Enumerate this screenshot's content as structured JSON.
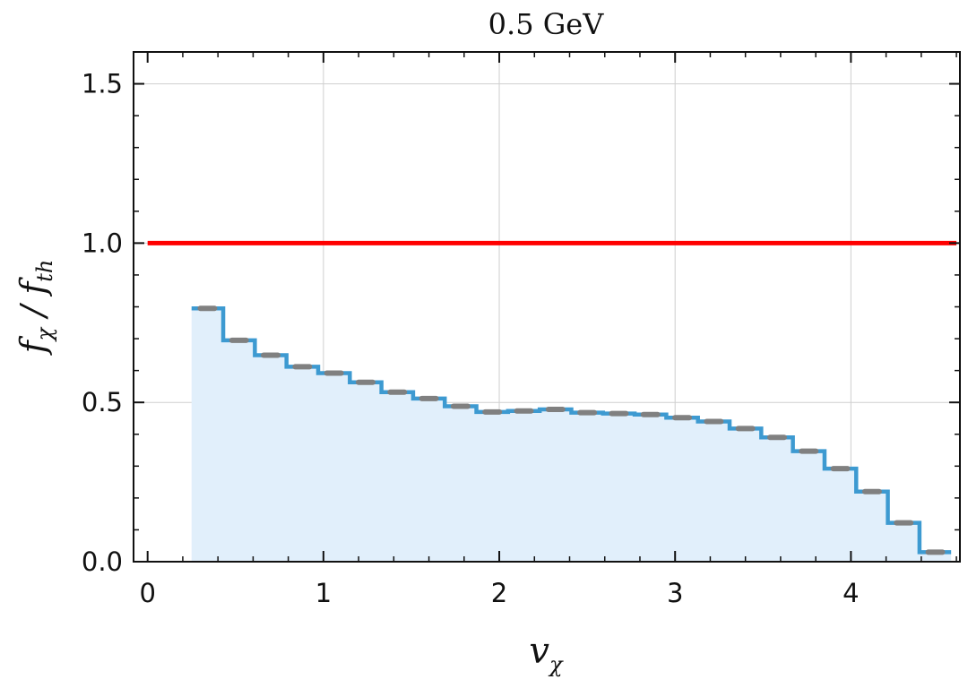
{
  "chart_data": {
    "type": "histogram",
    "title": "0.5 GeV",
    "xlabel": {
      "main": "v",
      "sub": "χ"
    },
    "ylabel": {
      "f1": "f",
      "s1": "χ",
      "slash": " / ",
      "f2": "f",
      "s2": "th"
    },
    "xlim": [
      -0.08,
      4.62
    ],
    "ylim": [
      0,
      1.6
    ],
    "xticks": [
      0,
      1,
      2,
      3,
      4
    ],
    "xtick_labels": [
      "0",
      "1",
      "2",
      "3",
      "4"
    ],
    "yticks": [
      0.0,
      0.5,
      1.0,
      1.5
    ],
    "ytick_labels": [
      "0.0",
      "0.5",
      "1.0",
      "1.5"
    ],
    "grid": true,
    "reference_line": {
      "y": 1.0,
      "x_start": 0.0,
      "x_end": 4.6,
      "color": "#ff0000"
    },
    "bin_edges": [
      0.25,
      0.43,
      0.61,
      0.79,
      0.97,
      1.15,
      1.33,
      1.51,
      1.69,
      1.87,
      2.05,
      2.23,
      2.41,
      2.59,
      2.77,
      2.95,
      3.13,
      3.31,
      3.49,
      3.67,
      3.85,
      4.03,
      4.21,
      4.39,
      4.57
    ],
    "values": [
      0.795,
      0.695,
      0.648,
      0.612,
      0.592,
      0.563,
      0.532,
      0.512,
      0.488,
      0.47,
      0.473,
      0.478,
      0.468,
      0.465,
      0.462,
      0.452,
      0.44,
      0.418,
      0.39,
      0.347,
      0.292,
      0.22,
      0.122,
      0.03
    ],
    "colors": {
      "step_line": "#3d9ad1",
      "fill": "#e1effb",
      "markers": "#808080",
      "reference": "#ff0000",
      "grid": "#cfcfcf"
    }
  }
}
